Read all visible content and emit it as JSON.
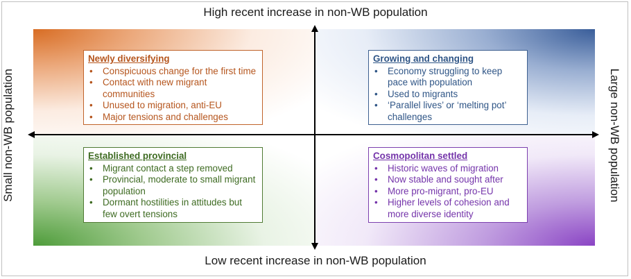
{
  "axes": {
    "top": "High recent increase in non-WB population",
    "bottom": "Low recent increase in non-WB population",
    "left": "Small non-WB population",
    "right": "Large non-WB population"
  },
  "quadrants": {
    "top_left": {
      "title": "Newly diversifying",
      "color": "#b5551d",
      "items": [
        "Conspicuous change for the first time",
        "Contact with new migrant communities",
        "Unused to migration, anti-EU",
        "Major tensions and challenges"
      ]
    },
    "top_right": {
      "title": "Growing and changing",
      "color": "#2f5586",
      "items": [
        "Economy struggling to keep pace with population",
        "Used to migrants",
        "‘Parallel lives’ or ‘melting pot’ challenges"
      ]
    },
    "bottom_left": {
      "title": "Established provincial",
      "color": "#3e6b22",
      "items": [
        "Migrant contact a step removed",
        "Provincial, moderate to small migrant population",
        "Dormant hostilities in attitudes but few overt tensions"
      ]
    },
    "bottom_right": {
      "title": "Cosmopolitan settled",
      "color": "#7434aa",
      "items": [
        "Historic waves of migration",
        "Now stable and sought after",
        "More pro-migrant, pro-EU",
        "Higher levels of cohesion and more diverse identity"
      ]
    }
  }
}
